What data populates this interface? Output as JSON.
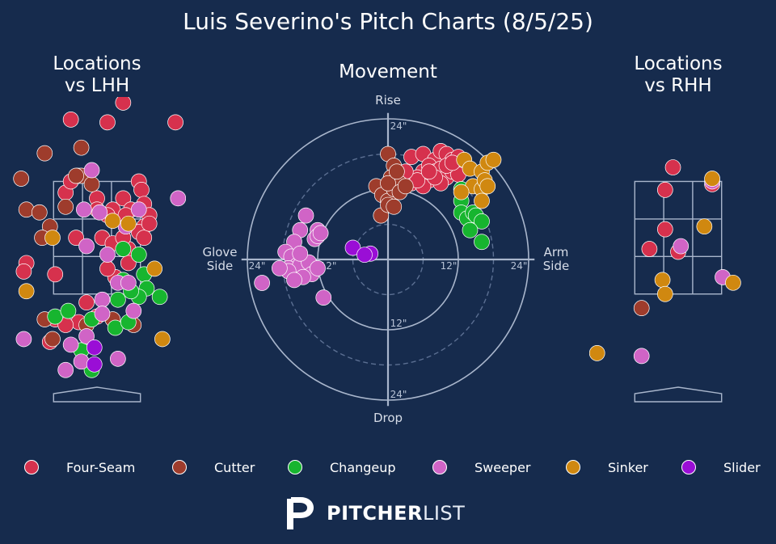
{
  "title": "Luis Severino's Pitch Charts (8/5/25)",
  "brand": {
    "bold": "PITCHER",
    "light": "LIST"
  },
  "colors": {
    "Four-Seam": "#d6314d",
    "Cutter": "#9e3c2c",
    "Changeup": "#17b52f",
    "Sweeper": "#d064c6",
    "Sinker": "#d08810",
    "Slider": "#9a0ed6",
    "background": "#162b4d"
  },
  "legend": [
    "Four-Seam",
    "Cutter",
    "Changeup",
    "Sweeper",
    "Sinker",
    "Slider"
  ],
  "chart_data": [
    {
      "type": "scatter",
      "title": "Locations\nvs LHH",
      "title_lines": [
        "Locations",
        "vs LHH"
      ],
      "x_unit": "ft (catcher view, plate_x)",
      "y_unit": "ft (plate_z)",
      "xlim": [
        -1.7,
        1.7
      ],
      "ylim": [
        -0.6,
        5.0
      ],
      "strike_zone": {
        "x": [
          -0.83,
          0.83
        ],
        "y": [
          1.5,
          3.5
        ]
      },
      "series": [
        {
          "name": "Four-Seam",
          "points": [
            [
              0.5,
              4.9
            ],
            [
              -0.5,
              4.6
            ],
            [
              0.2,
              4.55
            ],
            [
              1.5,
              4.55
            ],
            [
              -0.6,
              3.3
            ],
            [
              -0.5,
              3.5
            ],
            [
              -0.37,
              3.6
            ],
            [
              0.0,
              3.2
            ],
            [
              0.5,
              3.2
            ],
            [
              0.8,
              3.5
            ],
            [
              0.85,
              3.35
            ],
            [
              0.9,
              3.1
            ],
            [
              1.0,
              2.9
            ],
            [
              0.65,
              3.0
            ],
            [
              0.3,
              3.0
            ],
            [
              0.0,
              3.0
            ],
            [
              0.2,
              2.9
            ],
            [
              0.55,
              2.9
            ],
            [
              0.9,
              2.7
            ],
            [
              0.8,
              2.6
            ],
            [
              -0.4,
              2.5
            ],
            [
              0.1,
              2.5
            ],
            [
              0.3,
              2.4
            ],
            [
              0.6,
              2.3
            ],
            [
              -1.35,
              2.05
            ],
            [
              -0.8,
              1.85
            ],
            [
              0.35,
              1.8
            ],
            [
              -0.8,
              1.05
            ],
            [
              -0.35,
              1.0
            ],
            [
              -0.2,
              1.35
            ],
            [
              -0.6,
              0.95
            ],
            [
              0.0,
              1.1
            ],
            [
              -0.9,
              0.65
            ],
            [
              0.2,
              1.95
            ],
            [
              0.9,
              2.5
            ],
            [
              1.0,
              2.75
            ],
            [
              0.5,
              2.5
            ],
            [
              0.6,
              2.05
            ],
            [
              -1.4,
              1.9
            ]
          ]
        },
        {
          "name": "Cutter",
          "points": [
            [
              -1.0,
              4.0
            ],
            [
              -0.3,
              4.1
            ],
            [
              -1.45,
              3.55
            ],
            [
              -0.6,
              3.05
            ],
            [
              -1.35,
              3.0
            ],
            [
              -1.1,
              2.95
            ],
            [
              -0.9,
              2.7
            ],
            [
              -0.3,
              3.6
            ],
            [
              -0.1,
              3.45
            ],
            [
              -0.4,
              3.6
            ],
            [
              -1.05,
              2.5
            ],
            [
              -1.0,
              1.05
            ],
            [
              -0.2,
              0.95
            ],
            [
              -0.85,
              0.7
            ],
            [
              0.3,
              1.05
            ],
            [
              0.7,
              0.95
            ]
          ]
        },
        {
          "name": "Changeup",
          "points": [
            [
              0.5,
              2.3
            ],
            [
              0.8,
              2.2
            ],
            [
              0.9,
              1.85
            ],
            [
              0.95,
              1.6
            ],
            [
              1.2,
              1.45
            ],
            [
              0.8,
              1.45
            ],
            [
              0.65,
              1.55
            ],
            [
              0.5,
              1.75
            ],
            [
              0.4,
              1.4
            ],
            [
              -0.1,
              1.05
            ],
            [
              -0.3,
              0.5
            ],
            [
              -0.1,
              0.15
            ],
            [
              0.35,
              0.9
            ],
            [
              0.6,
              1.0
            ],
            [
              -0.8,
              1.1
            ],
            [
              -0.55,
              1.2
            ]
          ]
        },
        {
          "name": "Sweeper",
          "points": [
            [
              -0.1,
              3.7
            ],
            [
              -0.25,
              3.0
            ],
            [
              0.05,
              2.95
            ],
            [
              0.8,
              3.0
            ],
            [
              1.55,
              3.2
            ],
            [
              0.55,
              2.7
            ],
            [
              0.2,
              2.2
            ],
            [
              -0.2,
              2.35
            ],
            [
              0.4,
              1.7
            ],
            [
              0.7,
              1.2
            ],
            [
              0.1,
              1.4
            ],
            [
              0.1,
              1.15
            ],
            [
              -1.4,
              0.7
            ],
            [
              0.4,
              0.35
            ],
            [
              -0.3,
              0.3
            ],
            [
              -0.5,
              0.6
            ],
            [
              -0.6,
              0.15
            ],
            [
              -0.2,
              0.75
            ],
            [
              0.6,
              1.7
            ]
          ]
        },
        {
          "name": "Sinker",
          "points": [
            [
              -0.85,
              2.5
            ],
            [
              0.3,
              2.8
            ],
            [
              1.1,
              1.95
            ],
            [
              -1.35,
              1.55
            ],
            [
              1.25,
              0.7
            ],
            [
              0.6,
              2.75
            ]
          ]
        },
        {
          "name": "Slider",
          "points": [
            [
              -0.05,
              0.55
            ],
            [
              -0.05,
              0.25
            ]
          ]
        }
      ]
    },
    {
      "type": "scatter",
      "title": "Movement",
      "x_unit": "inches (horizontal break)",
      "y_unit": "inches (induced vertical break)",
      "axis_labels": {
        "top": "Rise",
        "bottom": "Drop",
        "left": "Glove\nSide",
        "right": "Arm\nSide",
        "left_lines": [
          "Glove",
          "Side"
        ],
        "right_lines": [
          "Arm",
          "Side"
        ]
      },
      "rings": [
        6,
        12,
        18,
        24
      ],
      "ring_labels": [
        "12\"",
        "24\""
      ],
      "series": [
        {
          "name": "Four-Seam",
          "points": [
            [
              4,
              17.5
            ],
            [
              6,
              18
            ],
            [
              8,
              17
            ],
            [
              9,
              18.5
            ],
            [
              10,
              18
            ],
            [
              11,
              17
            ],
            [
              12,
              17.5
            ],
            [
              6,
              15
            ],
            [
              7,
              16
            ],
            [
              8,
              15
            ],
            [
              9,
              15.5
            ],
            [
              10,
              14
            ],
            [
              11,
              15
            ],
            [
              12,
              14.5
            ],
            [
              7,
              13.5
            ],
            [
              4,
              13
            ],
            [
              5,
              14
            ],
            [
              6,
              12.5
            ],
            [
              9,
              13
            ],
            [
              8,
              14
            ],
            [
              10,
              16
            ],
            [
              11,
              16.5
            ],
            [
              2,
              12.5
            ],
            [
              5,
              13.5
            ],
            [
              7,
              15
            ],
            [
              3,
              15
            ]
          ]
        },
        {
          "name": "Cutter",
          "points": [
            [
              0,
              18
            ],
            [
              1,
              16
            ],
            [
              0.5,
              14
            ],
            [
              -2,
              12.5
            ],
            [
              -1,
              11
            ],
            [
              0,
              10
            ],
            [
              1,
              12
            ],
            [
              2,
              13
            ],
            [
              -1.2,
              7.5
            ],
            [
              0,
              9.3
            ],
            [
              1,
              9
            ],
            [
              0,
              13
            ],
            [
              2,
              11.5
            ],
            [
              3,
              12.5
            ],
            [
              1.5,
              15
            ]
          ]
        },
        {
          "name": "Changeup",
          "points": [
            [
              12.5,
              12
            ],
            [
              12.5,
              10
            ],
            [
              12.5,
              8
            ],
            [
              13.5,
              7
            ],
            [
              14.5,
              8
            ],
            [
              15,
              7.5
            ],
            [
              16,
              6.5
            ],
            [
              14,
              5
            ],
            [
              16,
              3
            ]
          ]
        },
        {
          "name": "Sweeper",
          "points": [
            [
              -14,
              7.5
            ],
            [
              -12,
              5
            ],
            [
              -12.5,
              3.5
            ],
            [
              -12,
              4
            ],
            [
              -11.5,
              4.5
            ],
            [
              -15,
              5
            ],
            [
              -16,
              3
            ],
            [
              -17.5,
              1.3
            ],
            [
              -16.5,
              0.5
            ],
            [
              -15.5,
              -1
            ],
            [
              -17,
              -1.5
            ],
            [
              -15,
              -1
            ],
            [
              -13.5,
              -0.5
            ],
            [
              -13,
              -2.5
            ],
            [
              -14.5,
              -3
            ],
            [
              -17,
              -2
            ],
            [
              -16,
              -3.5
            ],
            [
              -12,
              -1.5
            ],
            [
              -11,
              -6.5
            ],
            [
              -21.5,
              -4
            ],
            [
              -18.5,
              -1.5
            ],
            [
              -15,
              1
            ]
          ]
        },
        {
          "name": "Sinker",
          "points": [
            [
              13,
              17
            ],
            [
              14,
              15.5
            ],
            [
              16,
              15
            ],
            [
              17,
              16.5
            ],
            [
              18,
              17
            ],
            [
              14.5,
              12.5
            ],
            [
              16,
              12
            ],
            [
              16.5,
              13.5
            ],
            [
              17,
              12.5
            ],
            [
              12.5,
              11.5
            ],
            [
              16,
              10
            ]
          ]
        },
        {
          "name": "Slider",
          "points": [
            [
              -6,
              2
            ],
            [
              -3,
              1
            ],
            [
              -4,
              0.8
            ]
          ]
        }
      ]
    },
    {
      "type": "scatter",
      "title": "Locations\nvs RHH",
      "title_lines": [
        "Locations",
        "vs RHH"
      ],
      "x_unit": "ft (catcher view, plate_x)",
      "y_unit": "ft (plate_z)",
      "xlim": [
        -1.7,
        1.7
      ],
      "ylim": [
        -0.6,
        5.0
      ],
      "strike_zone": {
        "x": [
          -0.83,
          0.83
        ],
        "y": [
          1.5,
          3.5
        ]
      },
      "series": [
        {
          "name": "Four-Seam",
          "points": [
            [
              -0.1,
              3.75
            ],
            [
              -0.25,
              3.35
            ],
            [
              0.65,
              3.45
            ],
            [
              -0.25,
              2.65
            ],
            [
              -0.55,
              2.3
            ],
            [
              0.0,
              2.25
            ]
          ]
        },
        {
          "name": "Cutter",
          "points": [
            [
              -0.7,
              1.25
            ]
          ]
        },
        {
          "name": "Changeup",
          "points": []
        },
        {
          "name": "Sweeper",
          "points": [
            [
              0.65,
              3.5
            ],
            [
              0.05,
              2.35
            ],
            [
              0.85,
              1.8
            ],
            [
              -0.7,
              0.4
            ]
          ]
        },
        {
          "name": "Sinker",
          "points": [
            [
              0.65,
              3.55
            ],
            [
              0.5,
              2.7
            ],
            [
              -0.3,
              1.75
            ],
            [
              -0.25,
              1.5
            ],
            [
              1.05,
              1.7
            ],
            [
              -1.55,
              0.45
            ]
          ]
        },
        {
          "name": "Slider",
          "points": []
        }
      ]
    }
  ]
}
